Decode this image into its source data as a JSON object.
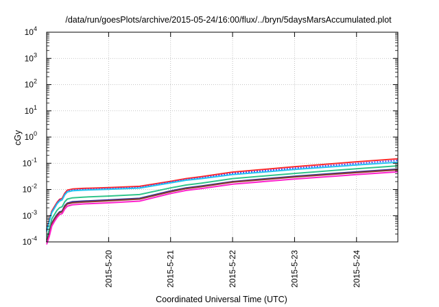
{
  "chart_data": {
    "type": "line",
    "title": "/data/run/goesPlots/archive/2015-05-24/16:00/flux/../bryn/5daysMarsAccumulated.plot",
    "xlabel": "Coordinated Universal Time (UTC)",
    "ylabel": "cGy",
    "x_axis": {
      "type": "time",
      "range": [
        "2015-05-19T00:00",
        "2015-05-24T16:00"
      ],
      "ticks": [
        "2015-5-20",
        "2015-5-21",
        "2015-5-22",
        "2015-5-23",
        "2015-5-24"
      ],
      "grid": true
    },
    "y_axis": {
      "type": "log",
      "range": [
        0.0001,
        10000
      ],
      "ticks": [
        {
          "base": "10",
          "exp": "-4",
          "value": 0.0001
        },
        {
          "base": "10",
          "exp": "-3",
          "value": 0.001
        },
        {
          "base": "10",
          "exp": "-2",
          "value": 0.01
        },
        {
          "base": "10",
          "exp": "-1",
          "value": 0.1
        },
        {
          "base": "10",
          "exp": "0",
          "value": 1
        },
        {
          "base": "10",
          "exp": "1",
          "value": 10
        },
        {
          "base": "10",
          "exp": "2",
          "value": 100
        },
        {
          "base": "10",
          "exp": "3",
          "value": 1000
        },
        {
          "base": "10",
          "exp": "4",
          "value": 10000
        }
      ],
      "grid": true
    },
    "legend": "none",
    "series": [
      {
        "color": "#ff2a2a",
        "points": [
          [
            "2015-05-19T00:00",
            0.0003
          ],
          [
            "2015-05-19T01:00",
            0.0007
          ],
          [
            "2015-05-19T02:00",
            0.0015
          ],
          [
            "2015-05-19T03:00",
            0.0022
          ],
          [
            "2015-05-19T04:00",
            0.0032
          ],
          [
            "2015-05-19T05:00",
            0.0042
          ],
          [
            "2015-05-19T06:00",
            0.0046
          ],
          [
            "2015-05-19T07:00",
            0.0072
          ],
          [
            "2015-05-19T08:00",
            0.0094
          ],
          [
            "2015-05-19T10:00",
            0.0104
          ],
          [
            "2015-05-19T14:00",
            0.011
          ],
          [
            "2015-05-20T00:00",
            0.0118
          ],
          [
            "2015-05-20T12:00",
            0.0132
          ],
          [
            "2015-05-21T00:00",
            0.0205
          ],
          [
            "2015-05-21T06:00",
            0.026
          ],
          [
            "2015-05-21T12:00",
            0.031
          ],
          [
            "2015-05-22T00:00",
            0.046
          ],
          [
            "2015-05-23T00:00",
            0.074
          ],
          [
            "2015-05-24T00:00",
            0.114
          ],
          [
            "2015-05-24T16:00",
            0.148
          ]
        ]
      },
      {
        "color": "#4040ff",
        "dash": "2,2",
        "points": [
          [
            "2015-05-19T00:00",
            0.00028
          ],
          [
            "2015-05-19T01:00",
            0.00065
          ],
          [
            "2015-05-19T02:00",
            0.0014
          ],
          [
            "2015-05-19T03:00",
            0.002
          ],
          [
            "2015-05-19T04:00",
            0.003
          ],
          [
            "2015-05-19T05:00",
            0.0039
          ],
          [
            "2015-05-19T06:00",
            0.0043
          ],
          [
            "2015-05-19T07:00",
            0.0066
          ],
          [
            "2015-05-19T08:00",
            0.0086
          ],
          [
            "2015-05-19T10:00",
            0.0095
          ],
          [
            "2015-05-19T14:00",
            0.01
          ],
          [
            "2015-05-20T00:00",
            0.0108
          ],
          [
            "2015-05-20T12:00",
            0.012
          ],
          [
            "2015-05-21T00:00",
            0.019
          ],
          [
            "2015-05-21T06:00",
            0.024
          ],
          [
            "2015-05-21T12:00",
            0.028
          ],
          [
            "2015-05-22T00:00",
            0.041
          ],
          [
            "2015-05-23T00:00",
            0.065
          ],
          [
            "2015-05-24T00:00",
            0.098
          ],
          [
            "2015-05-24T16:00",
            0.128
          ]
        ]
      },
      {
        "color": "#22c3ee",
        "points": [
          [
            "2015-05-19T00:00",
            0.00025
          ],
          [
            "2015-05-19T01:00",
            0.0006
          ],
          [
            "2015-05-19T02:00",
            0.0013
          ],
          [
            "2015-05-19T03:00",
            0.0019
          ],
          [
            "2015-05-19T04:00",
            0.0028
          ],
          [
            "2015-05-19T05:00",
            0.0036
          ],
          [
            "2015-05-19T06:00",
            0.004
          ],
          [
            "2015-05-19T07:00",
            0.0062
          ],
          [
            "2015-05-19T08:00",
            0.008
          ],
          [
            "2015-05-19T10:00",
            0.0089
          ],
          [
            "2015-05-19T14:00",
            0.0094
          ],
          [
            "2015-05-20T00:00",
            0.0101
          ],
          [
            "2015-05-20T12:00",
            0.0113
          ],
          [
            "2015-05-21T00:00",
            0.0178
          ],
          [
            "2015-05-21T06:00",
            0.0225
          ],
          [
            "2015-05-21T12:00",
            0.026
          ],
          [
            "2015-05-22T00:00",
            0.037
          ],
          [
            "2015-05-23T00:00",
            0.058
          ],
          [
            "2015-05-24T00:00",
            0.086
          ],
          [
            "2015-05-24T16:00",
            0.11
          ]
        ]
      },
      {
        "color": "#2ec48a",
        "points": [
          [
            "2015-05-19T00:00",
            0.00012
          ],
          [
            "2015-05-19T01:00",
            0.0003
          ],
          [
            "2015-05-19T02:00",
            0.00075
          ],
          [
            "2015-05-19T03:00",
            0.0011
          ],
          [
            "2015-05-19T04:00",
            0.0016
          ],
          [
            "2015-05-19T05:00",
            0.002
          ],
          [
            "2015-05-19T06:00",
            0.0022
          ],
          [
            "2015-05-19T07:00",
            0.0034
          ],
          [
            "2015-05-19T08:00",
            0.0043
          ],
          [
            "2015-05-19T10:00",
            0.0048
          ],
          [
            "2015-05-19T14:00",
            0.0051
          ],
          [
            "2015-05-20T00:00",
            0.0056
          ],
          [
            "2015-05-20T12:00",
            0.0064
          ],
          [
            "2015-05-21T00:00",
            0.0115
          ],
          [
            "2015-05-21T06:00",
            0.0148
          ],
          [
            "2015-05-21T12:00",
            0.0175
          ],
          [
            "2015-05-22T00:00",
            0.026
          ],
          [
            "2015-05-23T00:00",
            0.041
          ],
          [
            "2015-05-24T00:00",
            0.062
          ],
          [
            "2015-05-24T16:00",
            0.08
          ]
        ]
      },
      {
        "color": "#333399",
        "points": [
          [
            "2015-05-19T00:00",
            0.0001
          ],
          [
            "2015-05-19T01:00",
            0.00022
          ],
          [
            "2015-05-19T02:00",
            0.00052
          ],
          [
            "2015-05-19T03:00",
            0.00078
          ],
          [
            "2015-05-19T04:00",
            0.0011
          ],
          [
            "2015-05-19T05:00",
            0.0014
          ],
          [
            "2015-05-19T06:00",
            0.0015
          ],
          [
            "2015-05-19T07:00",
            0.0024
          ],
          [
            "2015-05-19T08:00",
            0.003
          ],
          [
            "2015-05-19T10:00",
            0.0034
          ],
          [
            "2015-05-19T14:00",
            0.0036
          ],
          [
            "2015-05-20T00:00",
            0.004
          ],
          [
            "2015-05-20T12:00",
            0.0046
          ],
          [
            "2015-05-21T00:00",
            0.0088
          ],
          [
            "2015-05-21T06:00",
            0.0115
          ],
          [
            "2015-05-21T12:00",
            0.0136
          ],
          [
            "2015-05-22T00:00",
            0.02
          ],
          [
            "2015-05-23T00:00",
            0.032
          ],
          [
            "2015-05-24T00:00",
            0.047
          ],
          [
            "2015-05-24T16:00",
            0.06
          ]
        ]
      },
      {
        "color": "#8a3a2a",
        "points": [
          [
            "2015-05-19T00:00",
            9.5e-05
          ],
          [
            "2015-05-19T01:00",
            0.0002
          ],
          [
            "2015-05-19T02:00",
            0.00048
          ],
          [
            "2015-05-19T03:00",
            0.00072
          ],
          [
            "2015-05-19T04:00",
            0.001
          ],
          [
            "2015-05-19T05:00",
            0.0013
          ],
          [
            "2015-05-19T06:00",
            0.0014
          ],
          [
            "2015-05-19T07:00",
            0.0022
          ],
          [
            "2015-05-19T08:00",
            0.0028
          ],
          [
            "2015-05-19T10:00",
            0.0031
          ],
          [
            "2015-05-19T14:00",
            0.0033
          ],
          [
            "2015-05-20T00:00",
            0.0037
          ],
          [
            "2015-05-20T12:00",
            0.0043
          ],
          [
            "2015-05-21T00:00",
            0.0082
          ],
          [
            "2015-05-21T06:00",
            0.0108
          ],
          [
            "2015-05-21T12:00",
            0.0128
          ],
          [
            "2015-05-22T00:00",
            0.019
          ],
          [
            "2015-05-23T00:00",
            0.03
          ],
          [
            "2015-05-24T00:00",
            0.044
          ],
          [
            "2015-05-24T16:00",
            0.056
          ]
        ]
      },
      {
        "color": "#ff22cc",
        "points": [
          [
            "2015-05-19T00:00",
            8e-05
          ],
          [
            "2015-05-19T01:00",
            0.00016
          ],
          [
            "2015-05-19T02:00",
            0.0004
          ],
          [
            "2015-05-19T03:00",
            0.0006
          ],
          [
            "2015-05-19T04:00",
            0.00085
          ],
          [
            "2015-05-19T05:00",
            0.0011
          ],
          [
            "2015-05-19T06:00",
            0.0012
          ],
          [
            "2015-05-19T07:00",
            0.0018
          ],
          [
            "2015-05-19T08:00",
            0.0023
          ],
          [
            "2015-05-19T10:00",
            0.0026
          ],
          [
            "2015-05-19T14:00",
            0.0028
          ],
          [
            "2015-05-20T00:00",
            0.0031
          ],
          [
            "2015-05-20T12:00",
            0.0036
          ],
          [
            "2015-05-21T00:00",
            0.007
          ],
          [
            "2015-05-21T06:00",
            0.0092
          ],
          [
            "2015-05-21T12:00",
            0.0109
          ],
          [
            "2015-05-22T00:00",
            0.016
          ],
          [
            "2015-05-23T00:00",
            0.025
          ],
          [
            "2015-05-24T00:00",
            0.037
          ],
          [
            "2015-05-24T16:00",
            0.047
          ]
        ]
      }
    ]
  }
}
